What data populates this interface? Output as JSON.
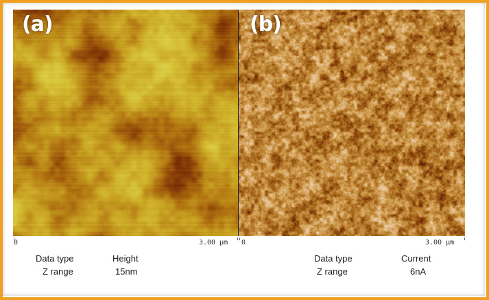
{
  "panels": [
    {
      "label": "(a)",
      "scale_start": "0",
      "scale_end": "3.00 µm",
      "data_type_label": "Data type",
      "data_type_value": "Height",
      "z_range_label": "Z range",
      "z_range_value": "15nm",
      "palette": [
        "#5a1c04",
        "#8a3f07",
        "#b17411",
        "#c9a423",
        "#d8c63a",
        "#e3d862"
      ]
    },
    {
      "label": "(b)",
      "scale_start": "0",
      "scale_end": "3.00 µm",
      "data_type_label": "Data type",
      "data_type_value": "Current",
      "z_range_label": "Z range",
      "z_range_value": "6nA",
      "palette": [
        "#4a1604",
        "#7a3308",
        "#a86a1c",
        "#cf9a4c",
        "#e8c79a",
        "#f0d3cc"
      ]
    }
  ],
  "colors": {
    "frame": "#f0a020",
    "label": "#ffffff"
  }
}
